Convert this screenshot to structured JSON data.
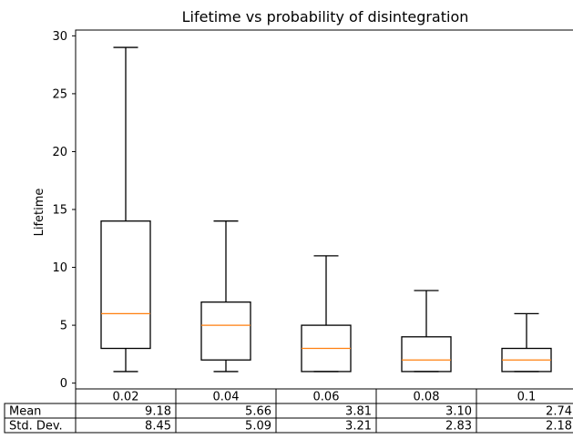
{
  "chart_data": {
    "type": "box",
    "title": "Lifetime vs probability of disintegration",
    "xlabel": "",
    "ylabel": "Lifetime",
    "ylim": [
      -0.5,
      30.5
    ],
    "yticks": [
      0,
      5,
      10,
      15,
      20,
      25,
      30
    ],
    "categories": [
      "0.02",
      "0.04",
      "0.06",
      "0.08",
      "0.1"
    ],
    "boxes": [
      {
        "whisker_low": 1,
        "q1": 3,
        "median": 6,
        "q3": 14,
        "whisker_high": 29
      },
      {
        "whisker_low": 1,
        "q1": 2,
        "median": 5,
        "q3": 7,
        "whisker_high": 14
      },
      {
        "whisker_low": 1,
        "q1": 1,
        "median": 3,
        "q3": 5,
        "whisker_high": 11
      },
      {
        "whisker_low": 1,
        "q1": 1,
        "median": 2,
        "q3": 4,
        "whisker_high": 8
      },
      {
        "whisker_low": 1,
        "q1": 1,
        "median": 2,
        "q3": 3,
        "whisker_high": 6
      }
    ],
    "grid": false,
    "colors": {
      "box": "#000000",
      "median": "#ff7f0e"
    },
    "table": {
      "columns": [
        "0.02",
        "0.04",
        "0.06",
        "0.08",
        "0.1"
      ],
      "rows": [
        {
          "label": "Mean",
          "values": [
            "9.18",
            "5.66",
            "3.81",
            "3.10",
            "2.74"
          ]
        },
        {
          "label": "Std. Dev.",
          "values": [
            "8.45",
            "5.09",
            "3.21",
            "2.83",
            "2.18"
          ]
        }
      ]
    }
  }
}
